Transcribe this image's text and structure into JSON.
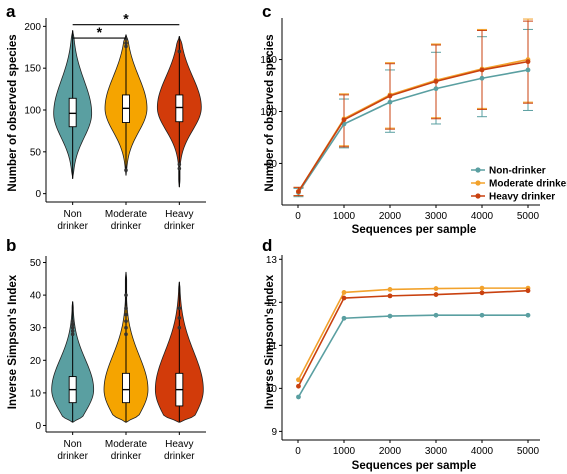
{
  "colors": {
    "non": "#5a9fa1",
    "moderate": "#f5a400",
    "heavy": "#d23b0a",
    "non_line": "#5a9fa1",
    "moderate_line": "#f2a22c",
    "heavy_line": "#c9410f"
  },
  "chart_data": [
    {
      "panel": "a",
      "type": "violin",
      "ylabel": "Number of observed species",
      "ylim": [
        -10,
        210
      ],
      "yticks": [
        "0",
        "50",
        "100",
        "150",
        "200"
      ],
      "categories": [
        "Non\ndrinker",
        "Moderate\ndrinker",
        "Heavy\ndrinker"
      ],
      "category_lines": [
        [
          "Non",
          "drinker"
        ],
        [
          "Moderate",
          "drinker"
        ],
        [
          "Heavy",
          "drinker"
        ]
      ],
      "series": [
        {
          "key": "non",
          "min": 18,
          "q1": 80,
          "median": 96,
          "q3": 114,
          "max": 195,
          "outliers": []
        },
        {
          "key": "moderate",
          "min": 22,
          "q1": 85,
          "median": 102,
          "q3": 118,
          "max": 190,
          "outliers": [
            176,
            180,
            185,
            28
          ]
        },
        {
          "key": "heavy",
          "min": 8,
          "q1": 86,
          "median": 103,
          "q3": 118,
          "max": 188,
          "outliers": [
            170,
            35,
            30
          ]
        }
      ],
      "significance": [
        {
          "from": 0,
          "to": 1,
          "label": "*",
          "y": 186
        },
        {
          "from": 0,
          "to": 2,
          "label": "*",
          "y": 202
        }
      ],
      "grid": false
    },
    {
      "panel": "b",
      "type": "violin",
      "ylabel": "Inverse Simpson's Index",
      "ylim": [
        -2,
        52
      ],
      "yticks": [
        "0",
        "10",
        "20",
        "30",
        "40",
        "50"
      ],
      "category_lines": [
        [
          "Non",
          "drinker"
        ],
        [
          "Moderate",
          "drinker"
        ],
        [
          "Heavy",
          "drinker"
        ]
      ],
      "series": [
        {
          "key": "non",
          "min": 1,
          "q1": 7,
          "median": 11,
          "q3": 15,
          "max": 38,
          "outliers": [
            28,
            29,
            30,
            31,
            32
          ]
        },
        {
          "key": "moderate",
          "min": 1,
          "q1": 7,
          "median": 11,
          "q3": 16,
          "max": 47,
          "outliers": [
            28,
            30,
            32,
            34,
            36,
            40
          ]
        },
        {
          "key": "heavy",
          "min": 1,
          "q1": 6,
          "median": 11,
          "q3": 16,
          "max": 44,
          "outliers": [
            30,
            33,
            36
          ]
        }
      ],
      "grid": false
    },
    {
      "panel": "c",
      "type": "line",
      "xlabel": "Sequences per sample",
      "ylabel": "Number of observed species",
      "x": [
        10,
        1000,
        2000,
        3000,
        4000,
        5000
      ],
      "xticks": [
        "0",
        "1000",
        "2000",
        "3000",
        "4000",
        "5000"
      ],
      "ylim": [
        10,
        190
      ],
      "yticks": [
        "50",
        "100",
        "150"
      ],
      "series": [
        {
          "name": "Non-drinker",
          "key": "non",
          "values": [
            22,
            88,
            109,
            122,
            132,
            140
          ],
          "err_low": [
            18,
            65,
            80,
            88,
            95,
            101
          ],
          "err_high": [
            26,
            112,
            140,
            157,
            172,
            179
          ]
        },
        {
          "name": "Moderate drinker",
          "key": "moderate",
          "values": [
            23,
            93,
            116,
            130,
            141,
            150
          ],
          "err_low": [
            19,
            67,
            84,
            94,
            103,
            109
          ],
          "err_high": [
            27,
            117,
            147,
            165,
            179,
            189
          ]
        },
        {
          "name": "Heavy drinker",
          "key": "heavy",
          "values": [
            23,
            92,
            115,
            129,
            140,
            148
          ],
          "err_low": [
            19,
            66,
            83,
            93,
            102,
            108
          ],
          "err_high": [
            27,
            116,
            146,
            164,
            178,
            187
          ]
        }
      ],
      "legend": "bottom-right",
      "grid": false
    },
    {
      "panel": "d",
      "type": "line",
      "xlabel": "Sequences per sample",
      "ylabel": "Inverse Simpson's Index",
      "x": [
        10,
        1000,
        2000,
        3000,
        4000,
        5000
      ],
      "xticks": [
        "0",
        "1000",
        "2000",
        "3000",
        "4000",
        "5000"
      ],
      "ylim": [
        8.8,
        13.1
      ],
      "yticks": [
        "9",
        "10",
        "11",
        "12",
        "13"
      ],
      "series": [
        {
          "key": "non",
          "values": [
            9.8,
            11.63,
            11.68,
            11.7,
            11.7,
            11.7
          ]
        },
        {
          "key": "moderate",
          "values": [
            10.2,
            12.23,
            12.3,
            12.32,
            12.33,
            12.33
          ]
        },
        {
          "key": "heavy",
          "values": [
            10.05,
            12.1,
            12.15,
            12.18,
            12.22,
            12.27
          ]
        }
      ],
      "grid": false
    }
  ]
}
